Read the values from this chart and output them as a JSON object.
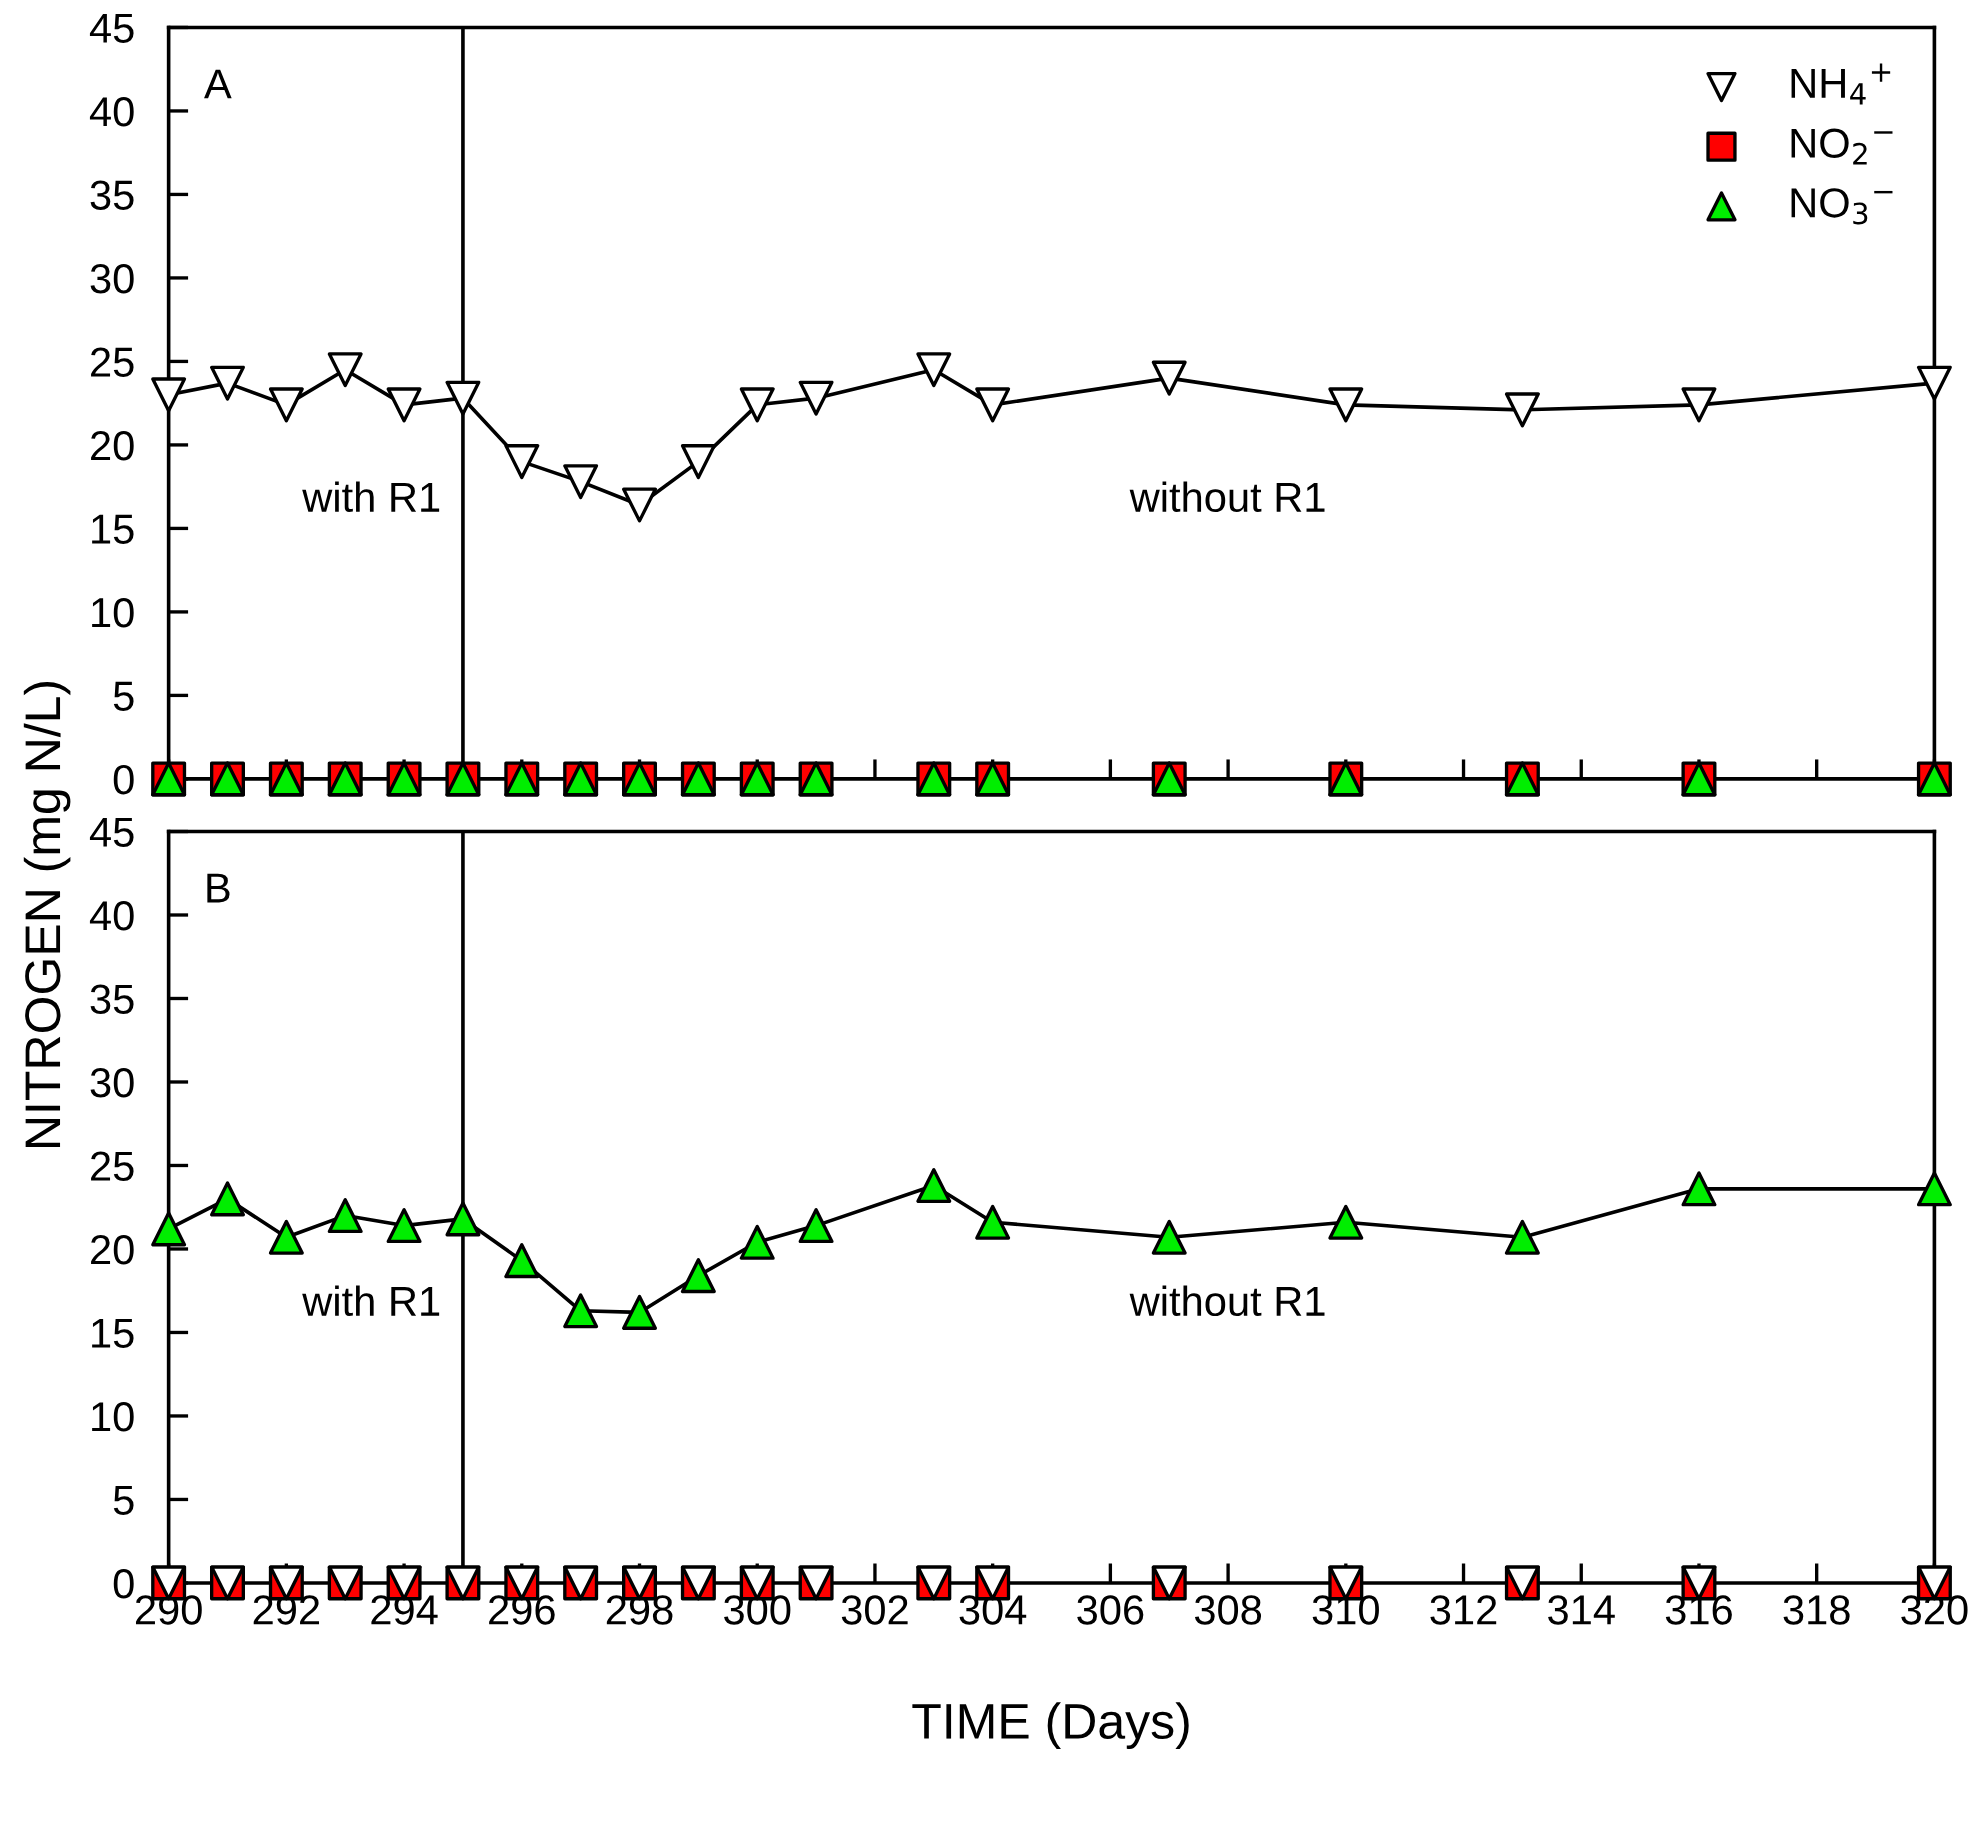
{
  "chart_data": [
    {
      "type": "line",
      "ylabel": "NITROGEN (mg N/L)",
      "annotations": [
        "A",
        "with R1",
        "without R1"
      ],
      "x": [
        290,
        291,
        292,
        293,
        294,
        295,
        296,
        297,
        298,
        299,
        300,
        301,
        303,
        304,
        307,
        310,
        313,
        316,
        320
      ],
      "series": [
        {
          "name": "NH$_{4}$$^{+}$",
          "color": "#ffffff",
          "marker": "triangle_down",
          "values": [
            23,
            23.7,
            22.4,
            24.5,
            22.4,
            22.8,
            19,
            17.8,
            16.4,
            19,
            22.4,
            22.8,
            24.5,
            22.4,
            24,
            22.4,
            22.1,
            22.4,
            23.7
          ]
        },
        {
          "name": "NO$_{2}$$^{−}$",
          "type": "scatter",
          "color": "#ff0000",
          "marker": "square",
          "values": [
            0,
            0,
            0,
            0,
            0,
            0,
            0,
            0,
            0,
            0,
            0,
            0,
            0,
            0,
            0,
            0,
            0,
            0,
            0
          ]
        },
        {
          "name": "NO$_{3}$$^{−}$",
          "type": "scatter",
          "color": "#00ee00",
          "marker": "triangle",
          "values": [
            0,
            0,
            0,
            0,
            0,
            0,
            0,
            0,
            0,
            0,
            0,
            0,
            0,
            0,
            0,
            0,
            0,
            0,
            0
          ]
        }
      ],
      "xlim": [
        290,
        320
      ],
      "xticks": [
        290,
        292,
        294,
        296,
        298,
        300,
        302,
        304,
        306,
        308,
        310,
        312,
        314,
        316,
        318,
        320
      ],
      "ylim": [
        0,
        45
      ],
      "yticks": [
        0,
        5,
        10,
        15,
        20,
        25,
        30,
        35,
        40,
        45
      ],
      "tick_labels": "y",
      "ref_lines": [
        {
          "axis": "x",
          "value": 295
        }
      ],
      "legend": "top right",
      "grid": false,
      "line_style": "solid"
    },
    {
      "type": "line",
      "xlabel": "TIME (Days)",
      "annotations": [
        "B",
        "with R1",
        "without R1"
      ],
      "x": [
        290,
        291,
        292,
        293,
        294,
        295,
        296,
        297,
        298,
        299,
        300,
        301,
        303,
        304,
        307,
        310,
        313,
        316,
        320
      ],
      "series": [
        {
          "type": "scatter",
          "color": "#ff0000",
          "marker": "square",
          "values": [
            0,
            0,
            0,
            0,
            0,
            0,
            0,
            0,
            0,
            0,
            0,
            0,
            0,
            0,
            0,
            0,
            0,
            0,
            0
          ]
        },
        {
          "color": "#00ee00",
          "marker": "triangle",
          "values": [
            21.2,
            23,
            20.7,
            22,
            21.4,
            21.8,
            19.3,
            16.3,
            16.2,
            18.4,
            20.4,
            21.4,
            23.8,
            21.6,
            20.7,
            21.6,
            20.7,
            23.6,
            23.6
          ]
        },
        {
          "type": "scatter",
          "color": "#ffffff",
          "marker": "triangle_down",
          "values": [
            0,
            0,
            0,
            0,
            0,
            0,
            0,
            0,
            0,
            0,
            0,
            0,
            0,
            0,
            0,
            0,
            0,
            0,
            0
          ]
        }
      ],
      "xlim": [
        290,
        320
      ],
      "xticks": [
        290,
        292,
        294,
        296,
        298,
        300,
        302,
        304,
        306,
        308,
        310,
        312,
        314,
        316,
        318,
        320
      ],
      "ylim": [
        0,
        45
      ],
      "yticks": [
        0,
        5,
        10,
        15,
        20,
        25,
        30,
        35,
        40,
        45
      ],
      "ref_lines": [
        {
          "axis": "x",
          "value": 295
        }
      ],
      "grid": false,
      "line_style": "solid"
    }
  ]
}
